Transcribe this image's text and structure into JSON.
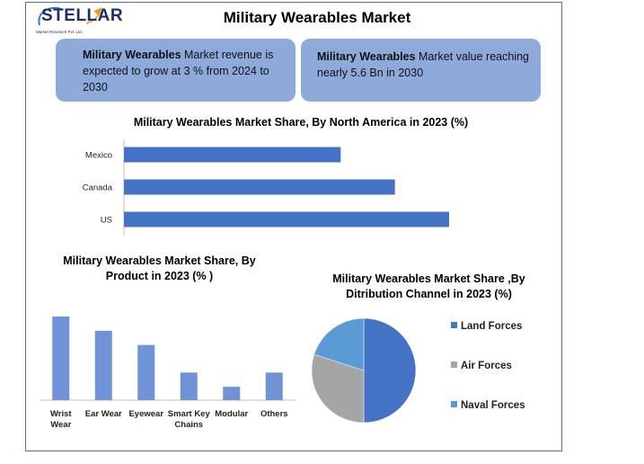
{
  "logo": {
    "text": "STELLAR",
    "subtext": "Market Research Pvt. Ltd."
  },
  "title": "Military Wearables Market",
  "info_boxes": [
    {
      "bold": "Military Wearables",
      "text": " Market revenue is expected to grow at 3 % from 2024 to 2030"
    },
    {
      "bold": "Military Wearables",
      "text": " Market value reaching nearly 5.6 Bn in 2030"
    }
  ],
  "colors": {
    "bar": "#4472c4",
    "bar_light": "#6f93d6",
    "box": "#8eaadb",
    "pie_land": "#4472c4",
    "pie_air": "#a5a5a5",
    "pie_naval": "#5b9bd5"
  },
  "chart_data": [
    {
      "type": "bar",
      "orientation": "horizontal",
      "title": "Military Wearables Market Share, By North America in 2023 (%)",
      "categories": [
        "Mexico",
        "Canada",
        "US"
      ],
      "values": [
        40,
        50,
        60
      ],
      "xlim": [
        0,
        60
      ],
      "grid": false
    },
    {
      "type": "bar",
      "title": "Military Wearables Market Share, By Product in 2023 (% )",
      "categories": [
        "Wrist Wear",
        "Ear Wear",
        "Eyewear",
        "Smart Key Chains",
        "Modular",
        "Others"
      ],
      "values": [
        100,
        83,
        66,
        33,
        16,
        33
      ],
      "ylim": [
        0,
        100
      ],
      "grid": false
    },
    {
      "type": "pie",
      "title": "Military Wearables Market Share ,By Ditribution Channel in 2023 (%)",
      "categories": [
        "Land Forces",
        "Air Forces",
        "Naval Forces"
      ],
      "values": [
        50,
        30,
        20
      ],
      "legend": "right"
    }
  ]
}
